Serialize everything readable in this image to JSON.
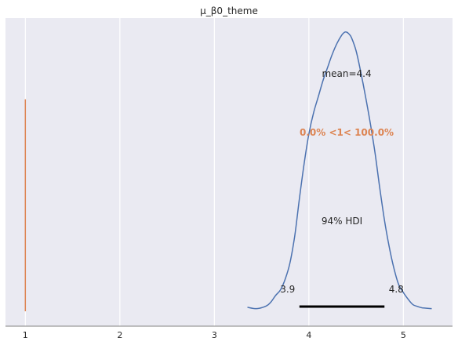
{
  "chart_data": {
    "type": "line",
    "title": "μ_β0_theme",
    "xlabel": "",
    "ylabel": "",
    "xlim": [
      0.79,
      5.52
    ],
    "ylim": [
      0,
      1
    ],
    "grid": true,
    "grid_axis": "x",
    "xticks": [
      1,
      2,
      3,
      4,
      5
    ],
    "xtick_labels": [
      "1",
      "2",
      "3",
      "4",
      "5"
    ],
    "series": [
      {
        "type": "density",
        "color": "#4c72b0",
        "x": [
          3.35,
          3.45,
          3.55,
          3.6,
          3.65,
          3.7,
          3.75,
          3.8,
          3.85,
          3.9,
          3.95,
          4.0,
          4.05,
          4.1,
          4.15,
          4.2,
          4.25,
          4.3,
          4.35,
          4.38,
          4.4,
          4.42,
          4.45,
          4.5,
          4.55,
          4.6,
          4.65,
          4.7,
          4.75,
          4.8,
          4.85,
          4.9,
          4.95,
          5.0,
          5.05,
          5.1,
          5.15,
          5.2,
          5.3
        ],
        "y": [
          0.015,
          0.01,
          0.02,
          0.035,
          0.06,
          0.08,
          0.12,
          0.18,
          0.28,
          0.42,
          0.55,
          0.66,
          0.74,
          0.8,
          0.86,
          0.91,
          0.96,
          1.0,
          1.03,
          1.04,
          1.04,
          1.035,
          1.02,
          0.97,
          0.89,
          0.8,
          0.7,
          0.59,
          0.46,
          0.34,
          0.24,
          0.16,
          0.1,
          0.07,
          0.045,
          0.025,
          0.018,
          0.013,
          0.01
        ]
      }
    ],
    "reference_line": {
      "x": 1,
      "y_range": [
        0,
        0.79
      ],
      "color": "#dd8452"
    },
    "hdi": {
      "low": 3.9,
      "high": 4.8,
      "label": "94% HDI",
      "low_label": "3.9",
      "high_label": "4.8"
    },
    "point_estimate": {
      "label": "mean=4.4",
      "x": 4.4
    },
    "ref_annotation": {
      "label": "0.0% <1< 100.0%",
      "color": "#dd8452"
    }
  }
}
